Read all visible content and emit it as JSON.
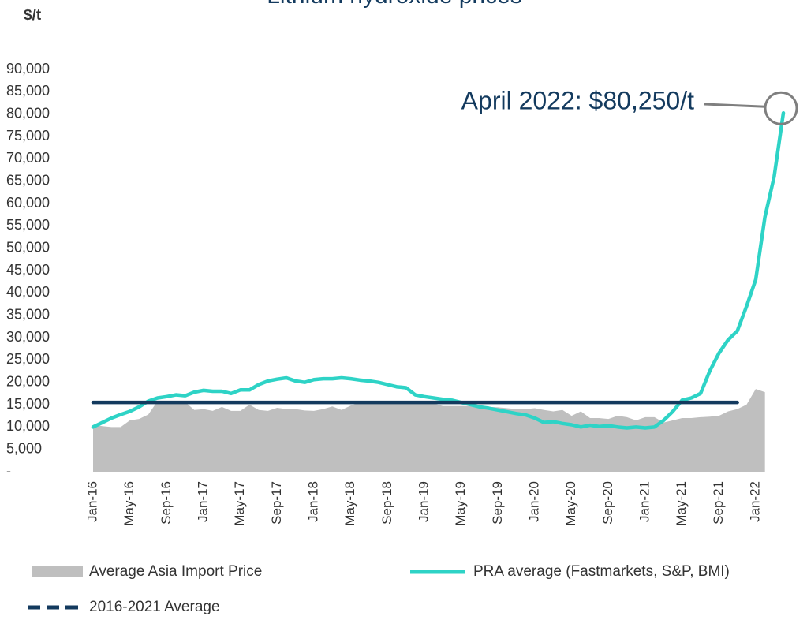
{
  "chart_data": {
    "type": "line",
    "title": "Lithium hydroxide prices",
    "y_label": "$/t",
    "categories": [
      "Jan-16",
      null,
      null,
      null,
      "May-16",
      null,
      null,
      null,
      "Sep-16",
      null,
      null,
      null,
      "Jan-17",
      null,
      null,
      null,
      "May-17",
      null,
      null,
      null,
      "Sep-17",
      null,
      null,
      null,
      "Jan-18",
      null,
      null,
      null,
      "May-18",
      null,
      null,
      null,
      "Sep-18",
      null,
      null,
      null,
      "Jan-19",
      null,
      null,
      null,
      "May-19",
      null,
      null,
      null,
      "Sep-19",
      null,
      null,
      null,
      "Jan-20",
      null,
      null,
      null,
      "May-20",
      null,
      null,
      null,
      "Sep-20",
      null,
      null,
      null,
      "Jan-21",
      null,
      null,
      null,
      "May-21",
      null,
      null,
      null,
      "Sep-21",
      null,
      null,
      null,
      "Jan-22",
      null,
      null,
      null
    ],
    "series": [
      {
        "name": "Average Asia Import Price",
        "type": "area",
        "color": "#bfbfbf",
        "values": [
          10500,
          10200,
          10000,
          10000,
          11500,
          11800,
          12800,
          15800,
          15800,
          15600,
          15600,
          13800,
          14000,
          13600,
          14500,
          13600,
          13600,
          15000,
          13800,
          13600,
          14300,
          14000,
          14000,
          13700,
          13600,
          14000,
          14600,
          13800,
          14800,
          15500,
          15500,
          15700,
          15500,
          15500,
          15500,
          15500,
          15500,
          15300,
          14700,
          14700,
          14700,
          14700,
          14600,
          14500,
          14400,
          14200,
          14000,
          14000,
          14200,
          13800,
          13500,
          13800,
          12500,
          13500,
          12000,
          12000,
          11800,
          12500,
          12200,
          11500,
          12200,
          12200,
          11000,
          11500,
          12000,
          12000,
          12200,
          12300,
          12500,
          13500,
          14000,
          15000,
          18500,
          17800,
          null,
          null
        ]
      },
      {
        "name": "PRA average (Fastmarkets, S&P, BMI)",
        "type": "line",
        "color": "#2ed3c6",
        "values": [
          10000,
          11000,
          12000,
          12800,
          13500,
          14500,
          15800,
          16500,
          16800,
          17200,
          17000,
          17800,
          18200,
          18000,
          18000,
          17500,
          18300,
          18300,
          19500,
          20300,
          20700,
          21000,
          20300,
          20000,
          20600,
          20800,
          20800,
          21000,
          20800,
          20500,
          20300,
          20000,
          19500,
          19000,
          18800,
          17200,
          16800,
          16500,
          16200,
          16000,
          15500,
          15000,
          14500,
          14200,
          13800,
          13400,
          13000,
          12700,
          12000,
          11000,
          11200,
          10800,
          10500,
          10000,
          10400,
          10100,
          10300,
          10000,
          9800,
          10000,
          9800,
          10000,
          11500,
          13500,
          16000,
          16500,
          17500,
          22500,
          26500,
          29500,
          31500,
          37000,
          43000,
          57000,
          66000,
          80250
        ]
      },
      {
        "name": "2016-2021 Average",
        "type": "line",
        "color": "#133a5e",
        "legend_dash": true,
        "values": [
          15500,
          15500,
          15500,
          15500,
          15500,
          15500,
          15500,
          15500,
          15500,
          15500,
          15500,
          15500,
          15500,
          15500,
          15500,
          15500,
          15500,
          15500,
          15500,
          15500,
          15500,
          15500,
          15500,
          15500,
          15500,
          15500,
          15500,
          15500,
          15500,
          15500,
          15500,
          15500,
          15500,
          15500,
          15500,
          15500,
          15500,
          15500,
          15500,
          15500,
          15500,
          15500,
          15500,
          15500,
          15500,
          15500,
          15500,
          15500,
          15500,
          15500,
          15500,
          15500,
          15500,
          15500,
          15500,
          15500,
          15500,
          15500,
          15500,
          15500,
          15500,
          15500,
          15500,
          15500,
          15500,
          15500,
          15500,
          15500,
          15500,
          15500,
          15500,
          null,
          null,
          null,
          null,
          null
        ]
      }
    ],
    "ylim": [
      0,
      90000
    ],
    "yticks": [
      {
        "value": 0,
        "label": "-"
      },
      {
        "value": 5000,
        "label": "5,000"
      },
      {
        "value": 10000,
        "label": "10,000"
      },
      {
        "value": 15000,
        "label": "15,000"
      },
      {
        "value": 20000,
        "label": "20,000"
      },
      {
        "value": 25000,
        "label": "25,000"
      },
      {
        "value": 30000,
        "label": "30,000"
      },
      {
        "value": 35000,
        "label": "35,000"
      },
      {
        "value": 40000,
        "label": "40,000"
      },
      {
        "value": 45000,
        "label": "45,000"
      },
      {
        "value": 50000,
        "label": "50,000"
      },
      {
        "value": 55000,
        "label": "55,000"
      },
      {
        "value": 60000,
        "label": "60,000"
      },
      {
        "value": 65000,
        "label": "65,000"
      },
      {
        "value": 70000,
        "label": "70,000"
      },
      {
        "value": 75000,
        "label": "75,000"
      },
      {
        "value": 80000,
        "label": "80,000"
      },
      {
        "value": 85000,
        "label": "85,000"
      },
      {
        "value": 90000,
        "label": "90,000"
      }
    ],
    "annotation": "April 2022: $80,250/t",
    "grid": false
  }
}
